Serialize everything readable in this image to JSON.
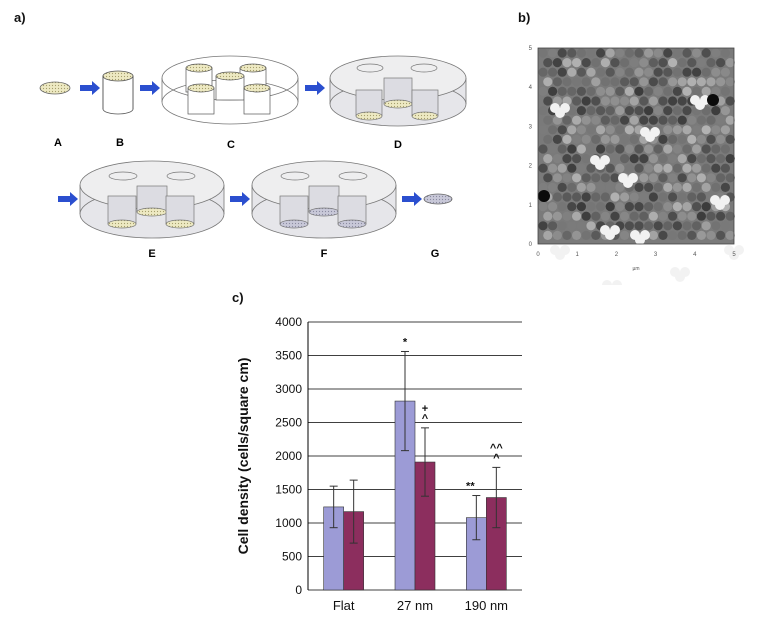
{
  "panels": {
    "a": {
      "label": "a)",
      "steps": [
        "A",
        "B",
        "C",
        "D",
        "E",
        "F",
        "G"
      ]
    },
    "b": {
      "label": "b)",
      "axis_x_ticks": [
        "0",
        "1",
        "2",
        "3",
        "4",
        "5"
      ],
      "axis_y_ticks": [
        "0",
        "1",
        "2",
        "3",
        "4",
        "5"
      ],
      "axis_unit": "µm"
    },
    "c": {
      "label": "c)"
    }
  },
  "chart_data": {
    "type": "bar",
    "categories": [
      "Flat",
      "27 nm",
      "190 nm"
    ],
    "ylabel": "Cell density (cells/square cm)",
    "ylim": [
      0,
      4000
    ],
    "yticks": [
      "0",
      "500",
      "1000",
      "1500",
      "2000",
      "2500",
      "3000",
      "3500",
      "4000"
    ],
    "grid": true,
    "series": [
      {
        "color": "#9c9bd6",
        "values": [
          1240,
          2820,
          1080
        ],
        "errors": [
          310,
          740,
          330
        ],
        "annotations": [
          "",
          "*",
          "**"
        ]
      },
      {
        "color": "#8c2e5e",
        "values": [
          1170,
          1910,
          1380
        ],
        "errors": [
          470,
          510,
          450
        ],
        "annotations": [
          "",
          "+\n^",
          "^^\n^"
        ]
      }
    ]
  }
}
